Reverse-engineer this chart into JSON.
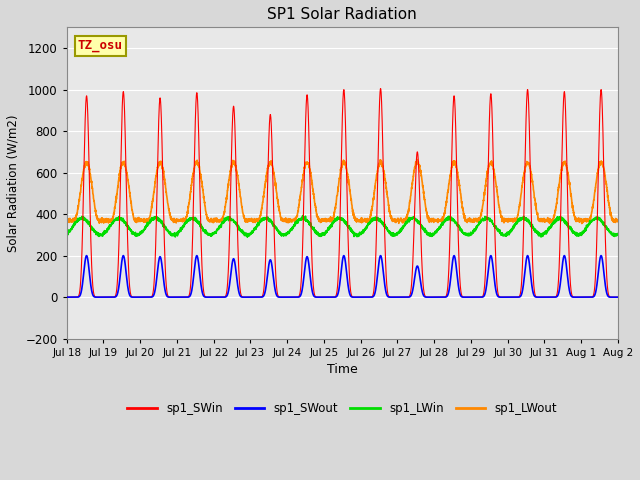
{
  "title": "SP1 Solar Radiation",
  "xlabel": "Time",
  "ylabel": "Solar Radiation (W/m2)",
  "ylim": [
    -200,
    1300
  ],
  "yticks": [
    -200,
    0,
    200,
    400,
    600,
    800,
    1000,
    1200
  ],
  "n_days": 15,
  "colors": {
    "SWin": "#ff0000",
    "SWout": "#0000ff",
    "LWin": "#00dd00",
    "LWout": "#ff8800"
  },
  "legend_labels": [
    "sp1_SWin",
    "sp1_SWout",
    "sp1_LWin",
    "sp1_LWout"
  ],
  "annotation_text": "TZ_osu",
  "bg_color": "#d8d8d8",
  "plot_bg_color": "#e8e8e8",
  "grid_color": "#ffffff",
  "sw_in_peaks": [
    970,
    990,
    960,
    985,
    920,
    880,
    975,
    1000,
    1005,
    700,
    970,
    980,
    1000,
    990,
    1000
  ],
  "sw_out_peaks": [
    200,
    200,
    195,
    200,
    185,
    180,
    195,
    200,
    200,
    150,
    200,
    200,
    200,
    200,
    200
  ],
  "lw_in_base": 340,
  "lw_in_amp": 40,
  "lw_out_peak": 650,
  "lw_out_night": 370
}
